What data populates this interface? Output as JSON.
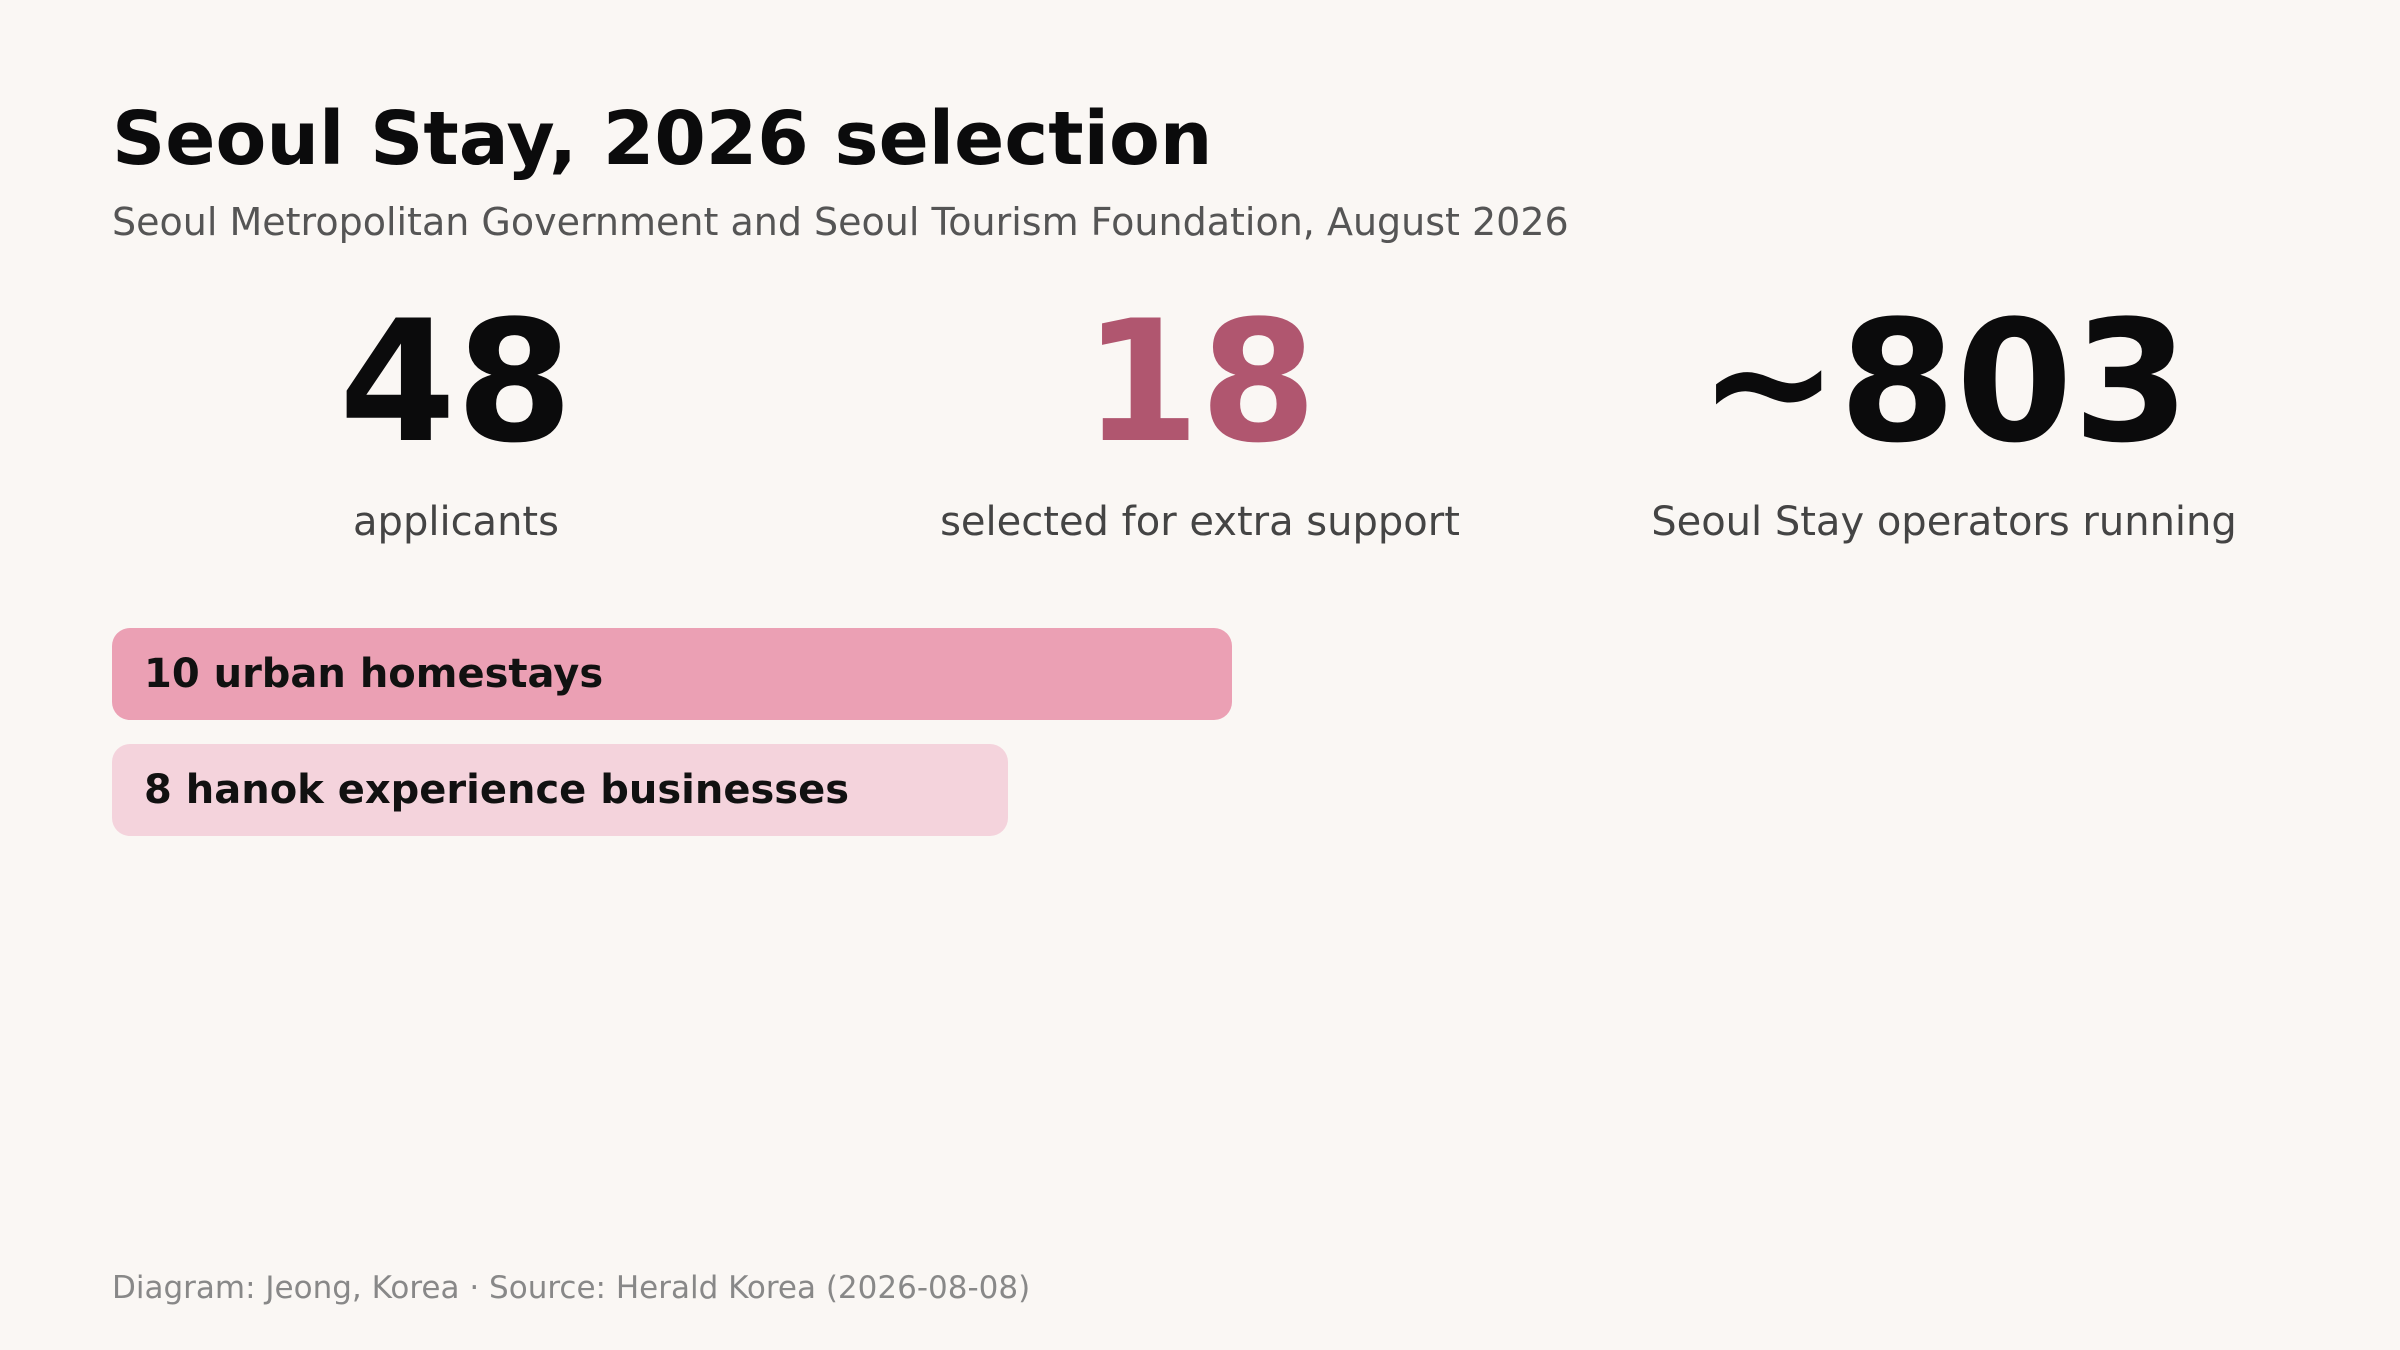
{
  "header": {
    "title": "Seoul Stay, 2026 selection",
    "subtitle": "Seoul Metropolitan Government and Seoul Tourism Foundation, August 2026"
  },
  "stats": [
    {
      "value": "48",
      "label": "applicants",
      "color": "#0b0b0c"
    },
    {
      "value": "18",
      "label": "selected for extra support",
      "color": "#b0566f"
    },
    {
      "value": "~803",
      "label": "Seoul Stay operators running",
      "color": "#0b0b0c"
    }
  ],
  "chart_data": {
    "type": "bar",
    "categories": [
      "urban homestays",
      "hanok experience businesses"
    ],
    "values": [
      10,
      8
    ],
    "bar_labels": [
      "10 urban homestays",
      "8 hanok experience businesses"
    ],
    "colors": [
      "#eba0b4",
      "#f4d3dc"
    ],
    "title": "",
    "xlabel": "",
    "ylabel": ""
  },
  "footer": {
    "credit": "Diagram: Jeong, Korea · Source: Herald Korea (2026-08-08)"
  }
}
